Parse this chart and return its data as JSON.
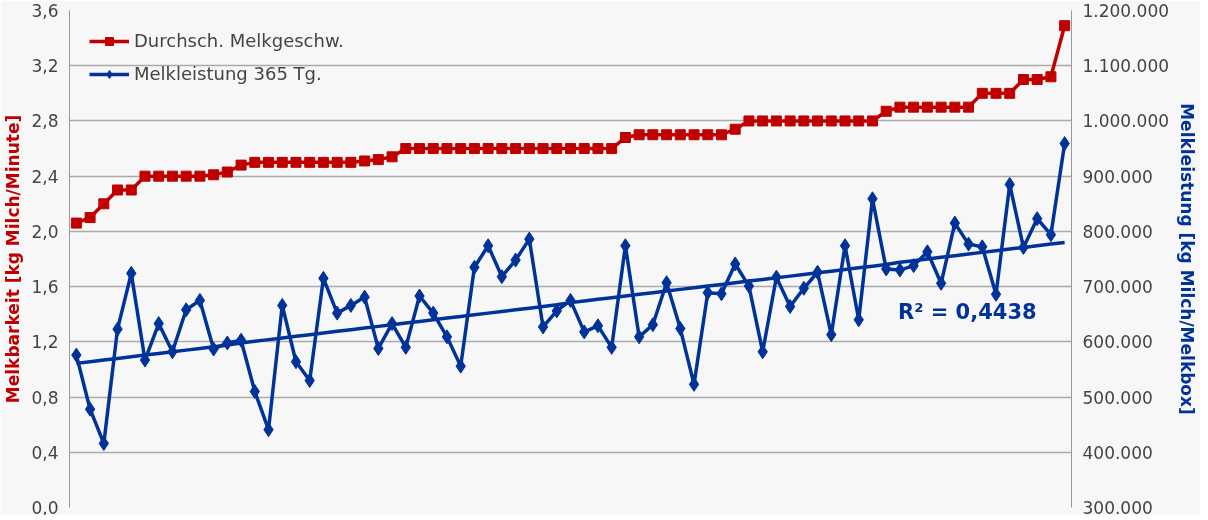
{
  "chart_data": {
    "type": "line",
    "categories": [
      null,
      null,
      null,
      null,
      null,
      null,
      null,
      null,
      null,
      null,
      null,
      null,
      null,
      null,
      null,
      null,
      null,
      null,
      null,
      null,
      null,
      null,
      null,
      null,
      null,
      null,
      null,
      null,
      null,
      null,
      null,
      null,
      null,
      null,
      null,
      null,
      null,
      null,
      null,
      null,
      null,
      null,
      null,
      null,
      null,
      null,
      null,
      null,
      null,
      null,
      null,
      null,
      null,
      null,
      null,
      null,
      null,
      null,
      null,
      null,
      null,
      null,
      null,
      null,
      null,
      null,
      null,
      null,
      null,
      null,
      null,
      null,
      null
    ],
    "ylabel": "Melkbarkeit [kg Milch/Minute]",
    "y2label": "Melkleistung [kg Milch/Melkbox]",
    "ylim": [
      0,
      3.6
    ],
    "yticks": [
      {
        "value": 0,
        "label": "0,0"
      },
      {
        "value": 0.4,
        "label": "0,4"
      },
      {
        "value": 0.8,
        "label": "0,8"
      },
      {
        "value": 1.2,
        "label": "1,2"
      },
      {
        "value": 1.6,
        "label": "1,6"
      },
      {
        "value": 2.0,
        "label": "2,0"
      },
      {
        "value": 2.4,
        "label": "2,4"
      },
      {
        "value": 2.8,
        "label": "2,8"
      },
      {
        "value": 3.2,
        "label": "3,2"
      },
      {
        "value": 3.6,
        "label": "3,6"
      }
    ],
    "y2lim": [
      300000,
      1200000
    ],
    "y2ticks": [
      {
        "value": 300000,
        "label": "300.000"
      },
      {
        "value": 400000,
        "label": "400.000"
      },
      {
        "value": 500000,
        "label": "500.000"
      },
      {
        "value": 600000,
        "label": "600.000"
      },
      {
        "value": 700000,
        "label": "700.000"
      },
      {
        "value": 800000,
        "label": "800.000"
      },
      {
        "value": 900000,
        "label": "900.000"
      },
      {
        "value": 1000000,
        "label": "1.000.000"
      },
      {
        "value": 1100000,
        "label": "1.100.000"
      },
      {
        "value": 1200000,
        "label": "1.200.000"
      }
    ],
    "grid": "y",
    "legend": "top left",
    "annotations": [
      "R² = 0,4438"
    ],
    "series": [
      {
        "name": "Durchsch. Melkgeschw.",
        "color": "#c00000",
        "marker": "square",
        "values": [
          2.06,
          2.1,
          2.2,
          2.3,
          2.3,
          2.4,
          2.4,
          2.4,
          2.4,
          2.4,
          2.41,
          2.43,
          2.48,
          2.5,
          2.5,
          2.5,
          2.5,
          2.5,
          2.5,
          2.5,
          2.5,
          2.51,
          2.52,
          2.54,
          2.6,
          2.6,
          2.6,
          2.6,
          2.6,
          2.6,
          2.6,
          2.6,
          2.6,
          2.6,
          2.6,
          2.6,
          2.6,
          2.6,
          2.6,
          2.6,
          2.68,
          2.7,
          2.7,
          2.7,
          2.7,
          2.7,
          2.7,
          2.7,
          2.74,
          2.8,
          2.8,
          2.8,
          2.8,
          2.8,
          2.8,
          2.8,
          2.8,
          2.8,
          2.8,
          2.87,
          2.9,
          2.9,
          2.9,
          2.9,
          2.9,
          2.9,
          3.0,
          3.0,
          3.0,
          3.1,
          3.1,
          3.12,
          3.49
        ]
      },
      {
        "name": "Melkleistung 365 Tg.",
        "color": "#003399",
        "marker": "diamond",
        "axis": "y2",
        "values": [
          576000,
          478000,
          416000,
          623000,
          724000,
          567000,
          633000,
          582000,
          658000,
          675000,
          587000,
          598000,
          603000,
          510000,
          441000,
          666000,
          564000,
          530000,
          715000,
          652000,
          666000,
          681000,
          588000,
          633000,
          590000,
          683000,
          652000,
          609000,
          556000,
          735000,
          774000,
          718000,
          748000,
          786000,
          627000,
          656000,
          675000,
          618000,
          629000,
          590000,
          774000,
          609000,
          631000,
          707000,
          624000,
          523000,
          689000,
          687000,
          741000,
          701000,
          582000,
          717000,
          664000,
          697000,
          726000,
          613000,
          774000,
          640000,
          859000,
          732000,
          730000,
          738000,
          763000,
          706000,
          815000,
          777000,
          772000,
          686000,
          885000,
          771000,
          823000,
          794000,
          959000
        ]
      },
      {
        "color": "#003399",
        "marker": "none",
        "axis": "y2",
        "values": [
          561000,
          564000,
          567000,
          570000,
          573000,
          576000,
          579000,
          582000,
          585000,
          588000,
          591000,
          594000,
          598000,
          601000,
          604000,
          607000,
          610000,
          613000,
          616000,
          619000,
          622000,
          625000,
          628000,
          631000,
          634000,
          637000,
          640000,
          643000,
          646000,
          649000,
          652000,
          655000,
          658000,
          661000,
          664000,
          667000,
          671000,
          674000,
          677000,
          680000,
          683000,
          686000,
          689000,
          692000,
          695000,
          698000,
          701000,
          704000,
          707000,
          710000,
          713000,
          716000,
          719000,
          722000,
          725000,
          728000,
          731000,
          734000,
          737000,
          740000,
          744000,
          747000,
          750000,
          753000,
          756000,
          759000,
          762000,
          765000,
          768000,
          771000,
          774000,
          777000,
          780000
        ]
      }
    ]
  }
}
